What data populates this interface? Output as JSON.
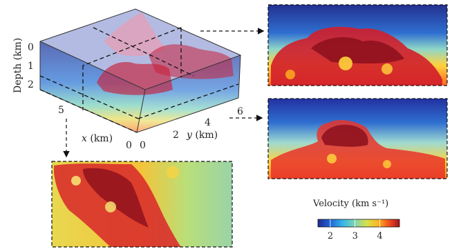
{
  "model": {
    "depth_axis": {
      "label": "Depth (km)",
      "ticks": [
        "0",
        "1",
        "2"
      ]
    },
    "x_axis": {
      "label_var": "x",
      "label_unit": "(km)",
      "ticks": [
        "5",
        "0"
      ]
    },
    "y_axis": {
      "label_var": "y",
      "label_unit": "(km)",
      "ticks": [
        "0",
        "2",
        "4",
        "6"
      ]
    }
  },
  "colorbar": {
    "label": "Velocity (km s⁻¹)",
    "ticks": [
      "2",
      "3",
      "4"
    ],
    "range": [
      1.5,
      4.8
    ],
    "colors": [
      "#1e2a8c",
      "#1f5fd6",
      "#36b4e8",
      "#7fd3b4",
      "#d7e04a",
      "#ffb41e",
      "#f0501e",
      "#a6101e"
    ]
  },
  "panels": [
    {
      "name": "top-right-slice"
    },
    {
      "name": "middle-right-slice"
    },
    {
      "name": "bottom-left-slice"
    }
  ]
}
